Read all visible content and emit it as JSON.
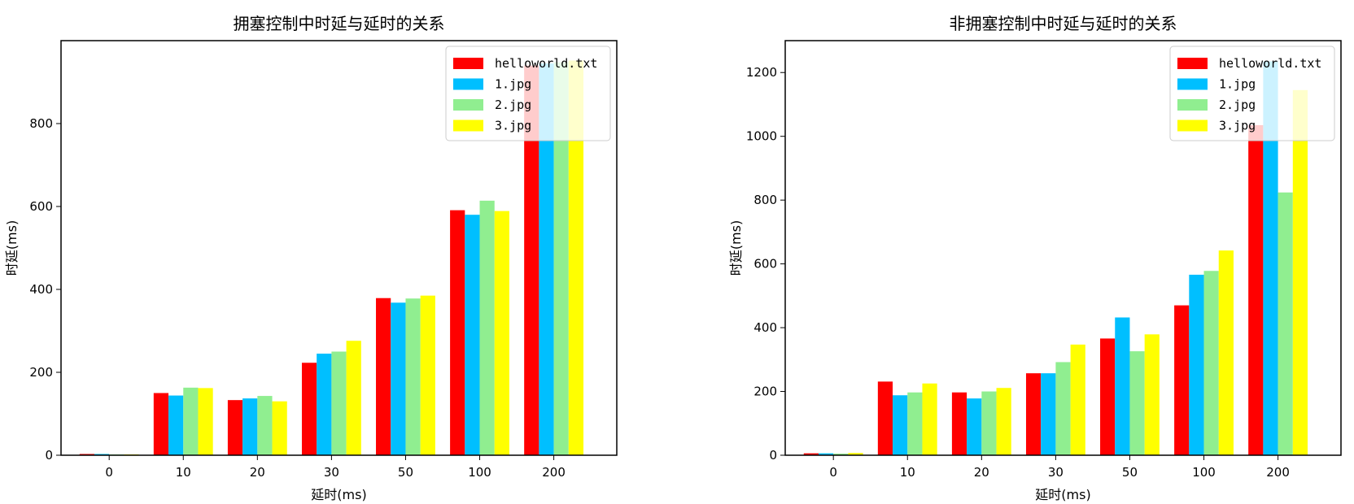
{
  "chart_data": [
    {
      "type": "bar",
      "title": "拥塞控制中时延与延时的关系",
      "xlabel": "延时(ms)",
      "ylabel": "时延(ms)",
      "categories": [
        "0",
        "10",
        "20",
        "30",
        "50",
        "100",
        "200"
      ],
      "ylim": [
        0,
        1000
      ],
      "yticks": [
        0,
        200,
        400,
        600,
        800
      ],
      "legend_position": "top-right",
      "series": [
        {
          "name": "helloworld.txt",
          "color": "#ff0000",
          "values": [
            3,
            150,
            133,
            223,
            379,
            591,
            940
          ]
        },
        {
          "name": "1.jpg",
          "color": "#00bfff",
          "values": [
            3,
            144,
            137,
            245,
            368,
            580,
            945
          ]
        },
        {
          "name": "2.jpg",
          "color": "#90ee90",
          "values": [
            2,
            163,
            143,
            250,
            378,
            614,
            948
          ]
        },
        {
          "name": "3.jpg",
          "color": "#ffff00",
          "values": [
            2,
            162,
            130,
            276,
            385,
            589,
            952
          ]
        }
      ]
    },
    {
      "type": "bar",
      "title": "非拥塞控制中时延与延时的关系",
      "xlabel": "延时(ms)",
      "ylabel": "时延(ms)",
      "categories": [
        "0",
        "10",
        "20",
        "30",
        "50",
        "100",
        "200"
      ],
      "ylim": [
        0,
        1300
      ],
      "yticks": [
        0,
        200,
        400,
        600,
        800,
        1000,
        1200
      ],
      "legend_position": "top-right",
      "series": [
        {
          "name": "helloworld.txt",
          "color": "#ff0000",
          "values": [
            6,
            231,
            197,
            257,
            366,
            470,
            1035
          ]
        },
        {
          "name": "1.jpg",
          "color": "#00bfff",
          "values": [
            6,
            188,
            178,
            257,
            432,
            566,
            1235
          ]
        },
        {
          "name": "2.jpg",
          "color": "#90ee90",
          "values": [
            5,
            197,
            200,
            292,
            326,
            578,
            824
          ]
        },
        {
          "name": "3.jpg",
          "color": "#ffff00",
          "values": [
            7,
            225,
            211,
            347,
            379,
            642,
            1145
          ]
        }
      ]
    }
  ]
}
